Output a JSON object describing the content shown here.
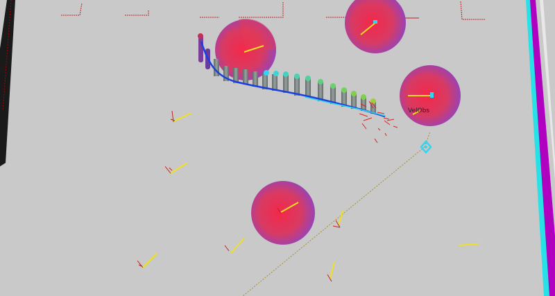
{
  "scene": {
    "background": "#c9c9c9",
    "colors": {
      "grid_wall_dark": "#1a1a1a",
      "wall_red": "#b00000",
      "boundary_magenta": "#b000c0",
      "boundary_cyan": "#27e1e6",
      "obstacle_red": "#f0304a",
      "obstacle_purple": "#8a45c9",
      "heading_yellow": "#f0e020",
      "path_blue": "#1a3fe0",
      "path_cyan": "#30d6e8",
      "pillar_gray": "#808a88",
      "goal_cyan": "#35d4f0"
    },
    "icons": {
      "goal_marker": "diamond-marker-icon",
      "obstacle": "velocity-obstacle-disc-icon"
    },
    "obstacle_label": "VelObs"
  }
}
